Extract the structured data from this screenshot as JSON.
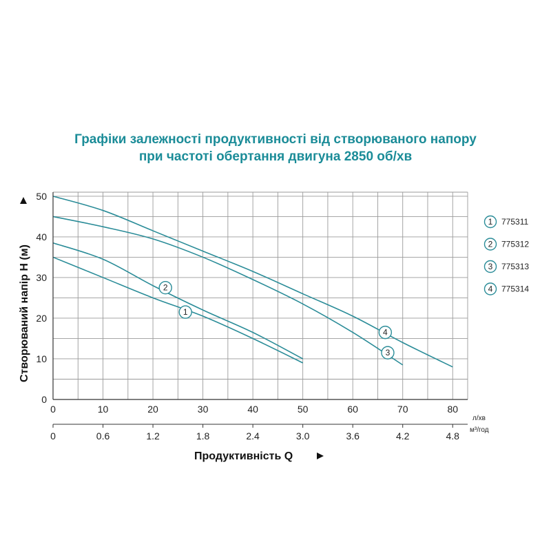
{
  "title": {
    "line1": "Графіки залежності продуктивності від створюваного напору",
    "line2": "при частоті обертання двигуна 2850 об/хв"
  },
  "colors": {
    "accent": "#1b8c98",
    "curve": "#2a8c98",
    "grid": "#9a9a9a"
  },
  "chart_data": {
    "type": "line",
    "xlabel": "Продуктивність  Q",
    "ylabel": "Створюваний напір H (м)",
    "x_unit": "л/хв",
    "x2_unit": "м³/год",
    "xlim": [
      0,
      83
    ],
    "ylim": [
      0,
      51
    ],
    "x_ticks": [
      0,
      10,
      20,
      30,
      40,
      50,
      60,
      70,
      80
    ],
    "x2_ticks": [
      "0",
      "0.6",
      "1.2",
      "1.8",
      "2.4",
      "3.0",
      "3.6",
      "4.2",
      "4.8"
    ],
    "y_ticks": [
      0,
      10,
      20,
      30,
      40,
      50
    ],
    "grid": true,
    "series": [
      {
        "name": "775311",
        "marker": "1",
        "marker_at": [
          26.5,
          21.5
        ],
        "x": [
          0,
          10,
          20,
          30,
          40,
          50
        ],
        "y": [
          35,
          30,
          25,
          20.5,
          15,
          9
        ]
      },
      {
        "name": "775312",
        "marker": "2",
        "marker_at": [
          22.5,
          27.5
        ],
        "x": [
          0,
          10,
          20,
          30,
          40,
          50
        ],
        "y": [
          38.5,
          34.5,
          28,
          22,
          16.5,
          10
        ]
      },
      {
        "name": "775313",
        "marker": "3",
        "marker_at": [
          67,
          11.5
        ],
        "x": [
          0,
          10,
          20,
          30,
          40,
          50,
          60,
          70
        ],
        "y": [
          45,
          42.5,
          39.5,
          35,
          29.5,
          23.5,
          16.5,
          8.5
        ]
      },
      {
        "name": "775314",
        "marker": "4",
        "marker_at": [
          66.5,
          16.5
        ],
        "x": [
          0,
          10,
          20,
          30,
          40,
          50,
          60,
          70,
          80
        ],
        "y": [
          50,
          46.5,
          41.5,
          36.5,
          31.5,
          26,
          20.5,
          14,
          8
        ]
      }
    ]
  }
}
